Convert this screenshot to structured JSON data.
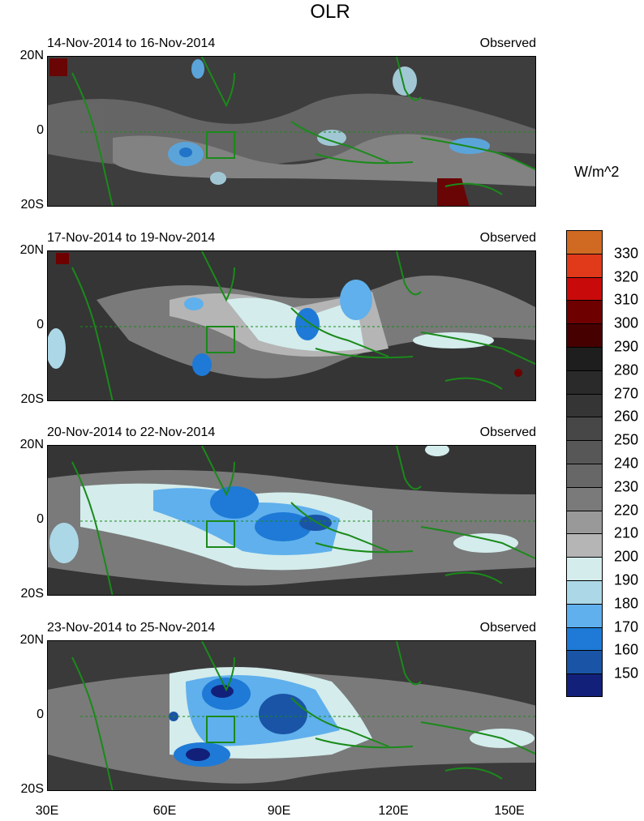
{
  "figure": {
    "title": "OLR",
    "units": "W/m^2",
    "y_ticks": [
      "20N",
      "0",
      "20S"
    ],
    "x_ticks": [
      "30E",
      "60E",
      "90E",
      "120E",
      "150E"
    ]
  },
  "panels": [
    {
      "date_range": "14-Nov-2014 to 16-Nov-2014",
      "label": "Observed"
    },
    {
      "date_range": "17-Nov-2014 to 19-Nov-2014",
      "label": "Observed"
    },
    {
      "date_range": "20-Nov-2014 to 22-Nov-2014",
      "label": "Observed"
    },
    {
      "date_range": "23-Nov-2014 to 25-Nov-2014",
      "label": "Observed"
    }
  ],
  "colorbar": {
    "labels": [
      "330",
      "320",
      "310",
      "300",
      "290",
      "280",
      "270",
      "260",
      "250",
      "240",
      "230",
      "220",
      "210",
      "200",
      "190",
      "180",
      "170",
      "160",
      "150"
    ],
    "colors": [
      "#d06a22",
      "#e03a1a",
      "#c80a0a",
      "#6e0000",
      "#460000",
      "#1e1e1e",
      "#2a2a2a",
      "#353535",
      "#474747",
      "#575757",
      "#676767",
      "#7a7a7a",
      "#999999",
      "#b5b5b5",
      "#d4ecec",
      "#acd7e6",
      "#5fb0ec",
      "#1e7ad6",
      "#1a54a6",
      "#12207a"
    ]
  },
  "map_colors": {
    "land_outline": "#1a8a1a",
    "box_outline": "#1a8a1a"
  }
}
